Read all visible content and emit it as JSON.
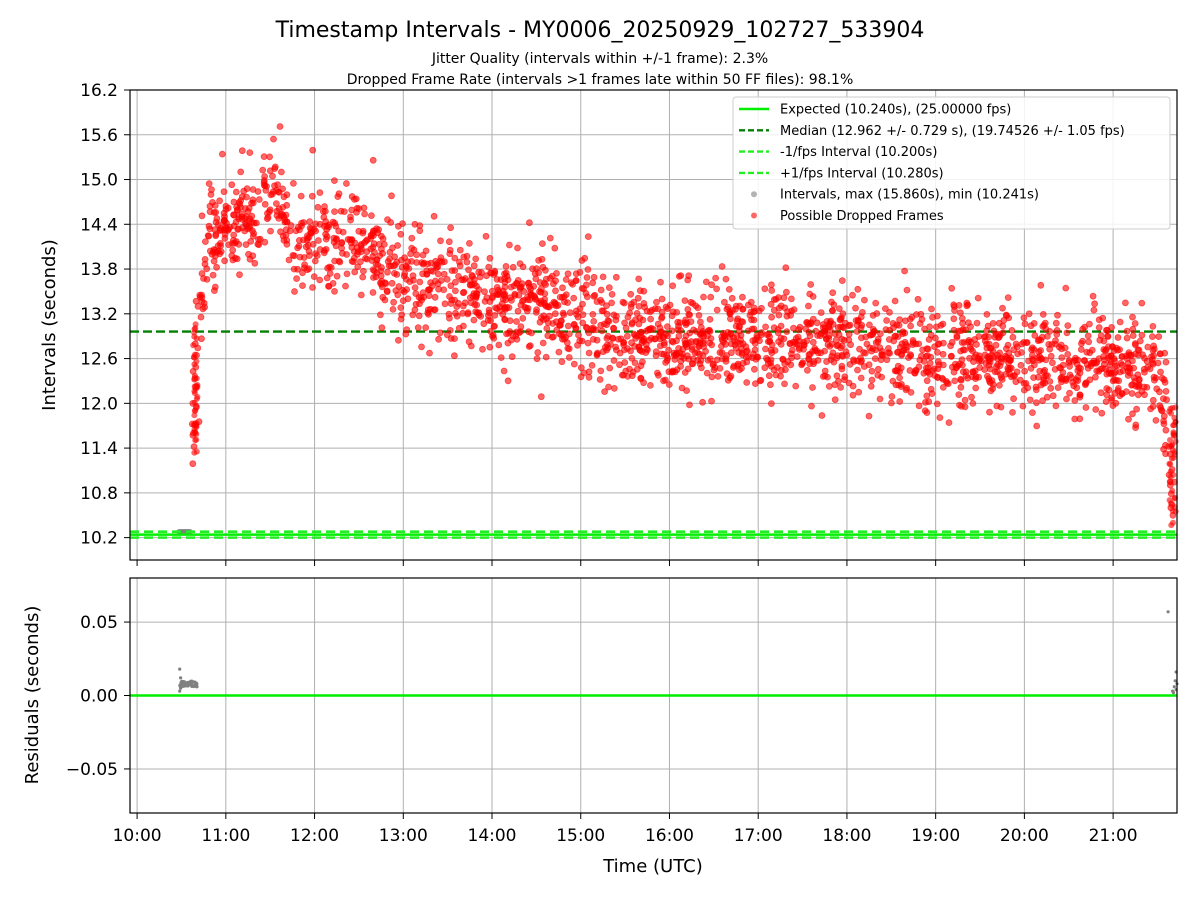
{
  "chart_data": {
    "type": "scatter",
    "title": "Timestamp Intervals - MY0006_20250929_102727_533904",
    "subtitle_lines": [
      "Jitter Quality (intervals within +/-1 frame): 2.3%",
      "Dropped Frame Rate (intervals >1 frames late within 50 FF files): 98.1%"
    ],
    "xlabel": "Time (UTC)",
    "xlim_hours": [
      9.92,
      21.72
    ],
    "x_ticks": [
      "10:00",
      "11:00",
      "12:00",
      "13:00",
      "14:00",
      "15:00",
      "16:00",
      "17:00",
      "18:00",
      "19:00",
      "20:00",
      "21:00"
    ],
    "x_tick_hours": [
      10,
      11,
      12,
      13,
      14,
      15,
      16,
      17,
      18,
      19,
      20,
      21
    ],
    "grid": true,
    "legend_position": "top-right",
    "panels": [
      {
        "name": "intervals",
        "ylabel": "Intervals (seconds)",
        "ylim": [
          9.9,
          16.2
        ],
        "y_ticks": [
          "10.2",
          "10.8",
          "11.4",
          "12.0",
          "12.6",
          "13.2",
          "13.8",
          "14.4",
          "15.0",
          "15.6",
          "16.2"
        ],
        "y_tick_values": [
          10.2,
          10.8,
          11.4,
          12.0,
          12.6,
          13.2,
          13.8,
          14.4,
          15.0,
          15.6,
          16.2
        ],
        "reference_lines": [
          {
            "label": "Expected (10.240s), (25.00000 fps)",
            "value": 10.24,
            "style": "solid",
            "color": "#00ee00"
          },
          {
            "label": "Median (12.962 +/- 0.729 s), (19.74526 +/- 1.05 fps)",
            "value": 12.962,
            "style": "dashed",
            "color": "#008000"
          },
          {
            "label": "-1/fps Interval (10.200s)",
            "value": 10.2,
            "style": "dashed",
            "color": "#22ee22"
          },
          {
            "label": "+1/fps Interval (10.280s)",
            "value": 10.28,
            "style": "dashed",
            "color": "#22ee22"
          }
        ],
        "scatter_series": [
          {
            "label": "Intervals, max (15.860s), min (10.241s)",
            "color": "#808080"
          },
          {
            "label": "Possible Dropped Frames",
            "color": "#ff0000"
          }
        ],
        "dropped_frames_trend": {
          "description_points_hours": [
            10.62,
            10.66,
            10.72,
            10.8,
            11.0,
            11.3,
            11.6,
            11.75,
            12.0,
            12.5,
            13.0,
            13.5,
            14.0,
            14.5,
            15.0,
            15.5,
            16.0,
            17.0,
            18.0,
            19.0,
            20.0,
            21.0,
            21.45,
            21.58,
            21.7
          ],
          "median_seconds": [
            11.3,
            12.3,
            13.5,
            14.1,
            14.35,
            14.5,
            14.9,
            14.1,
            14.25,
            14.1,
            13.8,
            13.45,
            13.35,
            13.3,
            13.1,
            12.9,
            12.85,
            12.85,
            12.8,
            12.7,
            12.55,
            12.5,
            12.4,
            12.0,
            10.35
          ],
          "spread_seconds": 0.35,
          "num_points": 2300
        },
        "normal_interval_points": {
          "x_hours": [
            10.47,
            10.6
          ],
          "y_seconds": 10.28
        }
      },
      {
        "name": "residuals",
        "ylabel": "Residuals (seconds)",
        "ylim": [
          -0.08,
          0.08
        ],
        "y_ticks": [
          "0.05",
          "0.00",
          "−0.05"
        ],
        "y_tick_values": [
          0.05,
          0.0,
          -0.05
        ],
        "zero_line_color": "#00ee00",
        "clusters": [
          {
            "x_hours": [
              10.48,
              10.68
            ],
            "y_seconds": [
              0.003,
              0.018
            ]
          },
          {
            "x_hours": [
              21.62,
              21.72
            ],
            "y_seconds": [
              0.002,
              0.057
            ]
          }
        ]
      }
    ]
  },
  "colors": {
    "dropped": "#ff0000",
    "intervals": "#808080",
    "expected": "#00ee00",
    "median": "#008000"
  }
}
